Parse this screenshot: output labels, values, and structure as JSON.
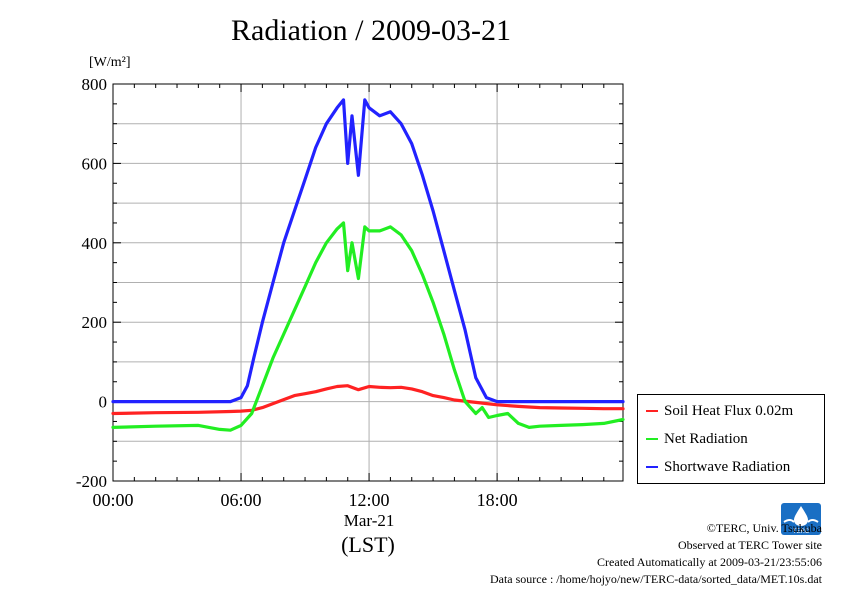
{
  "title": "Radiation / 2009-03-21",
  "y_unit_label": "[W/m²]",
  "x_unit_label": "(LST)",
  "legend": [
    {
      "label": "Soil Heat Flux 0.02m",
      "color": "#ff2222"
    },
    {
      "label": "Net Radiation",
      "color": "#22ee22"
    },
    {
      "label": "Shortwave Radiation",
      "color": "#2222ff"
    }
  ],
  "credits": {
    "copyright": "©TERC, Univ. Tsukuba",
    "site": "Observed at TERC Tower site",
    "created": "Created Automatically at 2009-03-21/23:55:06",
    "source": "Data source : /home/hojyo/new/TERC-data/sorted_data/MET.10s.dat"
  },
  "logo_text": "TERC",
  "chart_data": {
    "type": "line",
    "title": "Radiation / 2009-03-21",
    "ylabel": "[W/m²]",
    "xlabel": "(LST)",
    "ylim": [
      -200,
      800
    ],
    "xlim": [
      0,
      23.9
    ],
    "grid": true,
    "legend_position": "right",
    "y_ticks": [
      -200,
      0,
      200,
      400,
      600,
      800
    ],
    "x_ticks": [
      {
        "value": 0,
        "label": "00:00"
      },
      {
        "value": 6,
        "label": "06:00"
      },
      {
        "value": 12,
        "label": "12:00"
      },
      {
        "value": 18,
        "label": "18:00"
      }
    ],
    "x_date_label": "Mar-21",
    "series": [
      {
        "name": "Soil Heat Flux 0.02m",
        "color": "#ff2222",
        "x": [
          0,
          2,
          4,
          5.5,
          6,
          6.5,
          7,
          7.5,
          8,
          8.5,
          9,
          9.5,
          10,
          10.5,
          11,
          11.5,
          12,
          12.5,
          13,
          13.5,
          14,
          14.5,
          15,
          15.5,
          16,
          17,
          18,
          19,
          20,
          21,
          22,
          23,
          23.9
        ],
        "values": [
          -30,
          -28,
          -27,
          -25,
          -24,
          -22,
          -15,
          -5,
          5,
          15,
          20,
          25,
          32,
          38,
          40,
          30,
          38,
          36,
          35,
          36,
          32,
          25,
          15,
          10,
          4,
          -2,
          -8,
          -12,
          -15,
          -16,
          -17,
          -18,
          -18
        ]
      },
      {
        "name": "Net Radiation",
        "color": "#22ee22",
        "x": [
          0,
          2,
          4,
          5,
          5.5,
          6,
          6.5,
          7,
          7.5,
          8,
          8.5,
          9,
          9.5,
          10,
          10.5,
          10.8,
          11,
          11.2,
          11.5,
          11.8,
          12,
          12.5,
          13,
          13.5,
          14,
          14.5,
          15,
          15.5,
          16,
          16.5,
          17,
          17.3,
          17.6,
          18,
          18.5,
          19,
          19.5,
          20,
          21,
          22,
          23,
          23.9
        ],
        "values": [
          -65,
          -62,
          -60,
          -70,
          -72,
          -60,
          -30,
          40,
          110,
          170,
          230,
          290,
          350,
          400,
          435,
          450,
          330,
          400,
          310,
          440,
          430,
          430,
          440,
          420,
          380,
          320,
          250,
          170,
          80,
          0,
          -30,
          -15,
          -40,
          -35,
          -30,
          -55,
          -65,
          -62,
          -60,
          -58,
          -55,
          -45
        ]
      },
      {
        "name": "Shortwave Radiation",
        "color": "#2222ff",
        "x": [
          0,
          2,
          4,
          5.5,
          6,
          6.3,
          6.6,
          7,
          7.5,
          8,
          8.5,
          9,
          9.5,
          10,
          10.5,
          10.8,
          11,
          11.2,
          11.5,
          11.8,
          12,
          12.5,
          13,
          13.5,
          14,
          14.5,
          15,
          15.5,
          16,
          16.5,
          17,
          17.5,
          18,
          19,
          20,
          21,
          22,
          23,
          23.9
        ],
        "values": [
          0,
          0,
          0,
          0,
          10,
          40,
          110,
          200,
          300,
          400,
          480,
          560,
          640,
          700,
          740,
          760,
          600,
          720,
          570,
          760,
          740,
          720,
          730,
          700,
          650,
          570,
          480,
          380,
          280,
          180,
          60,
          10,
          0,
          0,
          0,
          0,
          0,
          0,
          0
        ]
      }
    ]
  }
}
